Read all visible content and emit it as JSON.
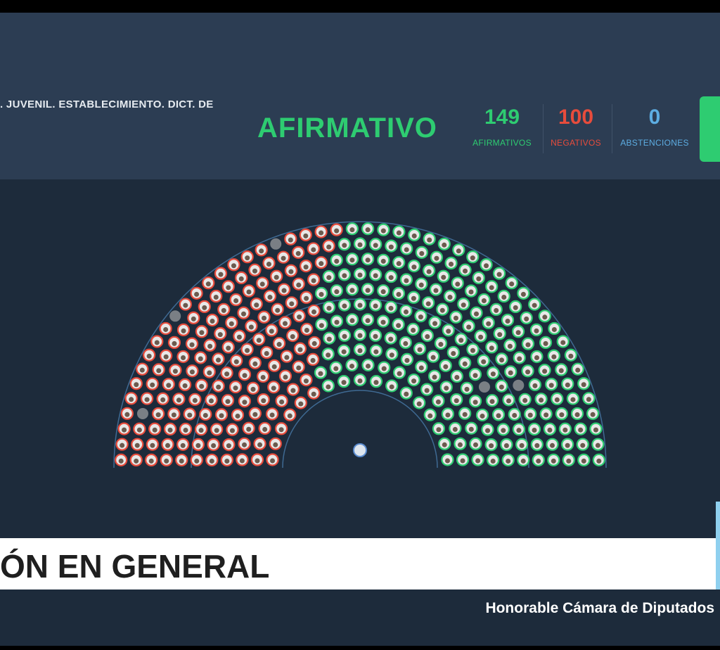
{
  "header": {
    "title": ". JUVENIL. ESTABLECIMIENTO. DICT. DE",
    "result": "AFIRMATIVO",
    "tallies": [
      {
        "count": 149,
        "label": "AFIRMATIVOS"
      },
      {
        "count": 100,
        "label": "NEGATIVOS"
      },
      {
        "count": 0,
        "label": "ABSTENCIONES"
      }
    ]
  },
  "banner": {
    "text": "ÓN EN GENERAL"
  },
  "footer": {
    "text": "Honorable Cámara de Diputados"
  }
}
